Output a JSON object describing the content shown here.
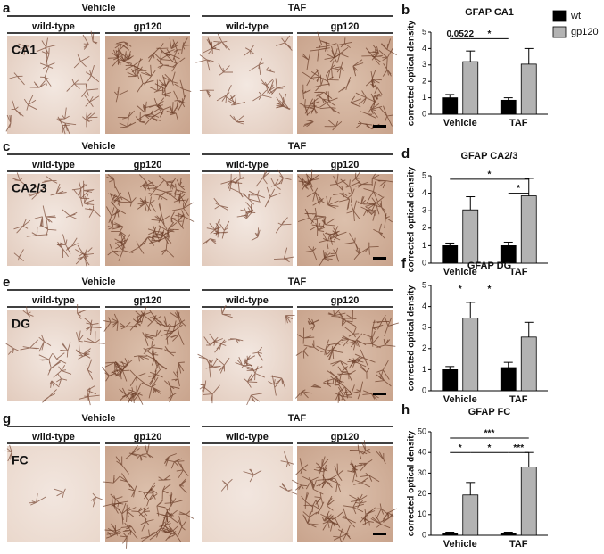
{
  "rows": [
    {
      "letter": "a",
      "region": "CA1",
      "groups": [
        {
          "title": "Vehicle",
          "labels": [
            "wild-type",
            "gp120"
          ]
        },
        {
          "title": "TAF",
          "labels": [
            "wild-type",
            "gp120"
          ]
        }
      ]
    },
    {
      "letter": "c",
      "region": "CA2/3",
      "groups": [
        {
          "title": "Vehicle",
          "labels": [
            "wild-type",
            "gp120"
          ]
        },
        {
          "title": "TAF",
          "labels": [
            "wild-type",
            "gp120"
          ]
        }
      ]
    },
    {
      "letter": "e",
      "region": "DG",
      "groups": [
        {
          "title": "Vehicle",
          "labels": [
            "wild-type",
            "gp120"
          ]
        },
        {
          "title": "TAF",
          "labels": [
            "wild-type",
            "gp120"
          ]
        }
      ]
    },
    {
      "letter": "g",
      "region": "FC",
      "groups": [
        {
          "title": "Vehicle",
          "labels": [
            "wild-type",
            "gp120"
          ]
        },
        {
          "title": "TAF",
          "labels": [
            "wild-type",
            "gp120"
          ]
        }
      ]
    }
  ],
  "chart_data": [
    {
      "type": "bar",
      "panel_label": "b",
      "title": "GFAP CA1",
      "ylabel": "corrected optical density",
      "categories": [
        "Vehicle",
        "TAF"
      ],
      "series": [
        {
          "name": "wt",
          "color": "#000000",
          "values": [
            1.0,
            0.85
          ],
          "errors": [
            0.2,
            0.15
          ]
        },
        {
          "name": "gp120",
          "color": "#b3b3b3",
          "values": [
            3.2,
            3.05
          ],
          "errors": [
            0.65,
            0.95
          ]
        }
      ],
      "ylim": [
        0,
        5
      ],
      "yticks": [
        0,
        1,
        2,
        3,
        4,
        5
      ],
      "legend": true,
      "annotations": [
        "0.0522",
        "*"
      ]
    },
    {
      "type": "bar",
      "panel_label": "d",
      "title": "GFAP CA2/3",
      "ylabel": "corrected optical density",
      "categories": [
        "Vehicle",
        "TAF"
      ],
      "series": [
        {
          "name": "wt",
          "color": "#000000",
          "values": [
            1.0,
            1.0
          ],
          "errors": [
            0.15,
            0.2
          ]
        },
        {
          "name": "gp120",
          "color": "#b3b3b3",
          "values": [
            3.05,
            3.85
          ],
          "errors": [
            0.75,
            1.0
          ]
        }
      ],
      "ylim": [
        0,
        5
      ],
      "yticks": [
        0,
        1,
        2,
        3,
        4,
        5
      ],
      "legend": false,
      "annotations": [
        "*",
        "*"
      ]
    },
    {
      "type": "bar",
      "panel_label": "f",
      "title": "GFAP DG",
      "ylabel": "corrected optical density",
      "categories": [
        "Vehicle",
        "TAF"
      ],
      "series": [
        {
          "name": "wt",
          "color": "#000000",
          "values": [
            1.0,
            1.1
          ],
          "errors": [
            0.15,
            0.25
          ]
        },
        {
          "name": "gp120",
          "color": "#b3b3b3",
          "values": [
            3.45,
            2.55
          ],
          "errors": [
            0.75,
            0.7
          ]
        }
      ],
      "ylim": [
        0,
        5
      ],
      "yticks": [
        0,
        1,
        2,
        3,
        4,
        5
      ],
      "legend": false,
      "annotations": [
        "*",
        "*"
      ]
    },
    {
      "type": "bar",
      "panel_label": "h",
      "title": "GFAP FC",
      "ylabel": "corrected optical density",
      "categories": [
        "Vehicle",
        "TAF"
      ],
      "series": [
        {
          "name": "wt",
          "color": "#000000",
          "values": [
            1,
            1
          ],
          "errors": [
            0.5,
            0.5
          ]
        },
        {
          "name": "gp120",
          "color": "#b3b3b3",
          "values": [
            19.5,
            33
          ],
          "errors": [
            6,
            7
          ]
        }
      ],
      "ylim": [
        0,
        50
      ],
      "yticks": [
        0,
        10,
        20,
        30,
        40,
        50
      ],
      "legend": false,
      "annotations": [
        "***",
        "*",
        "*",
        "***"
      ]
    }
  ]
}
